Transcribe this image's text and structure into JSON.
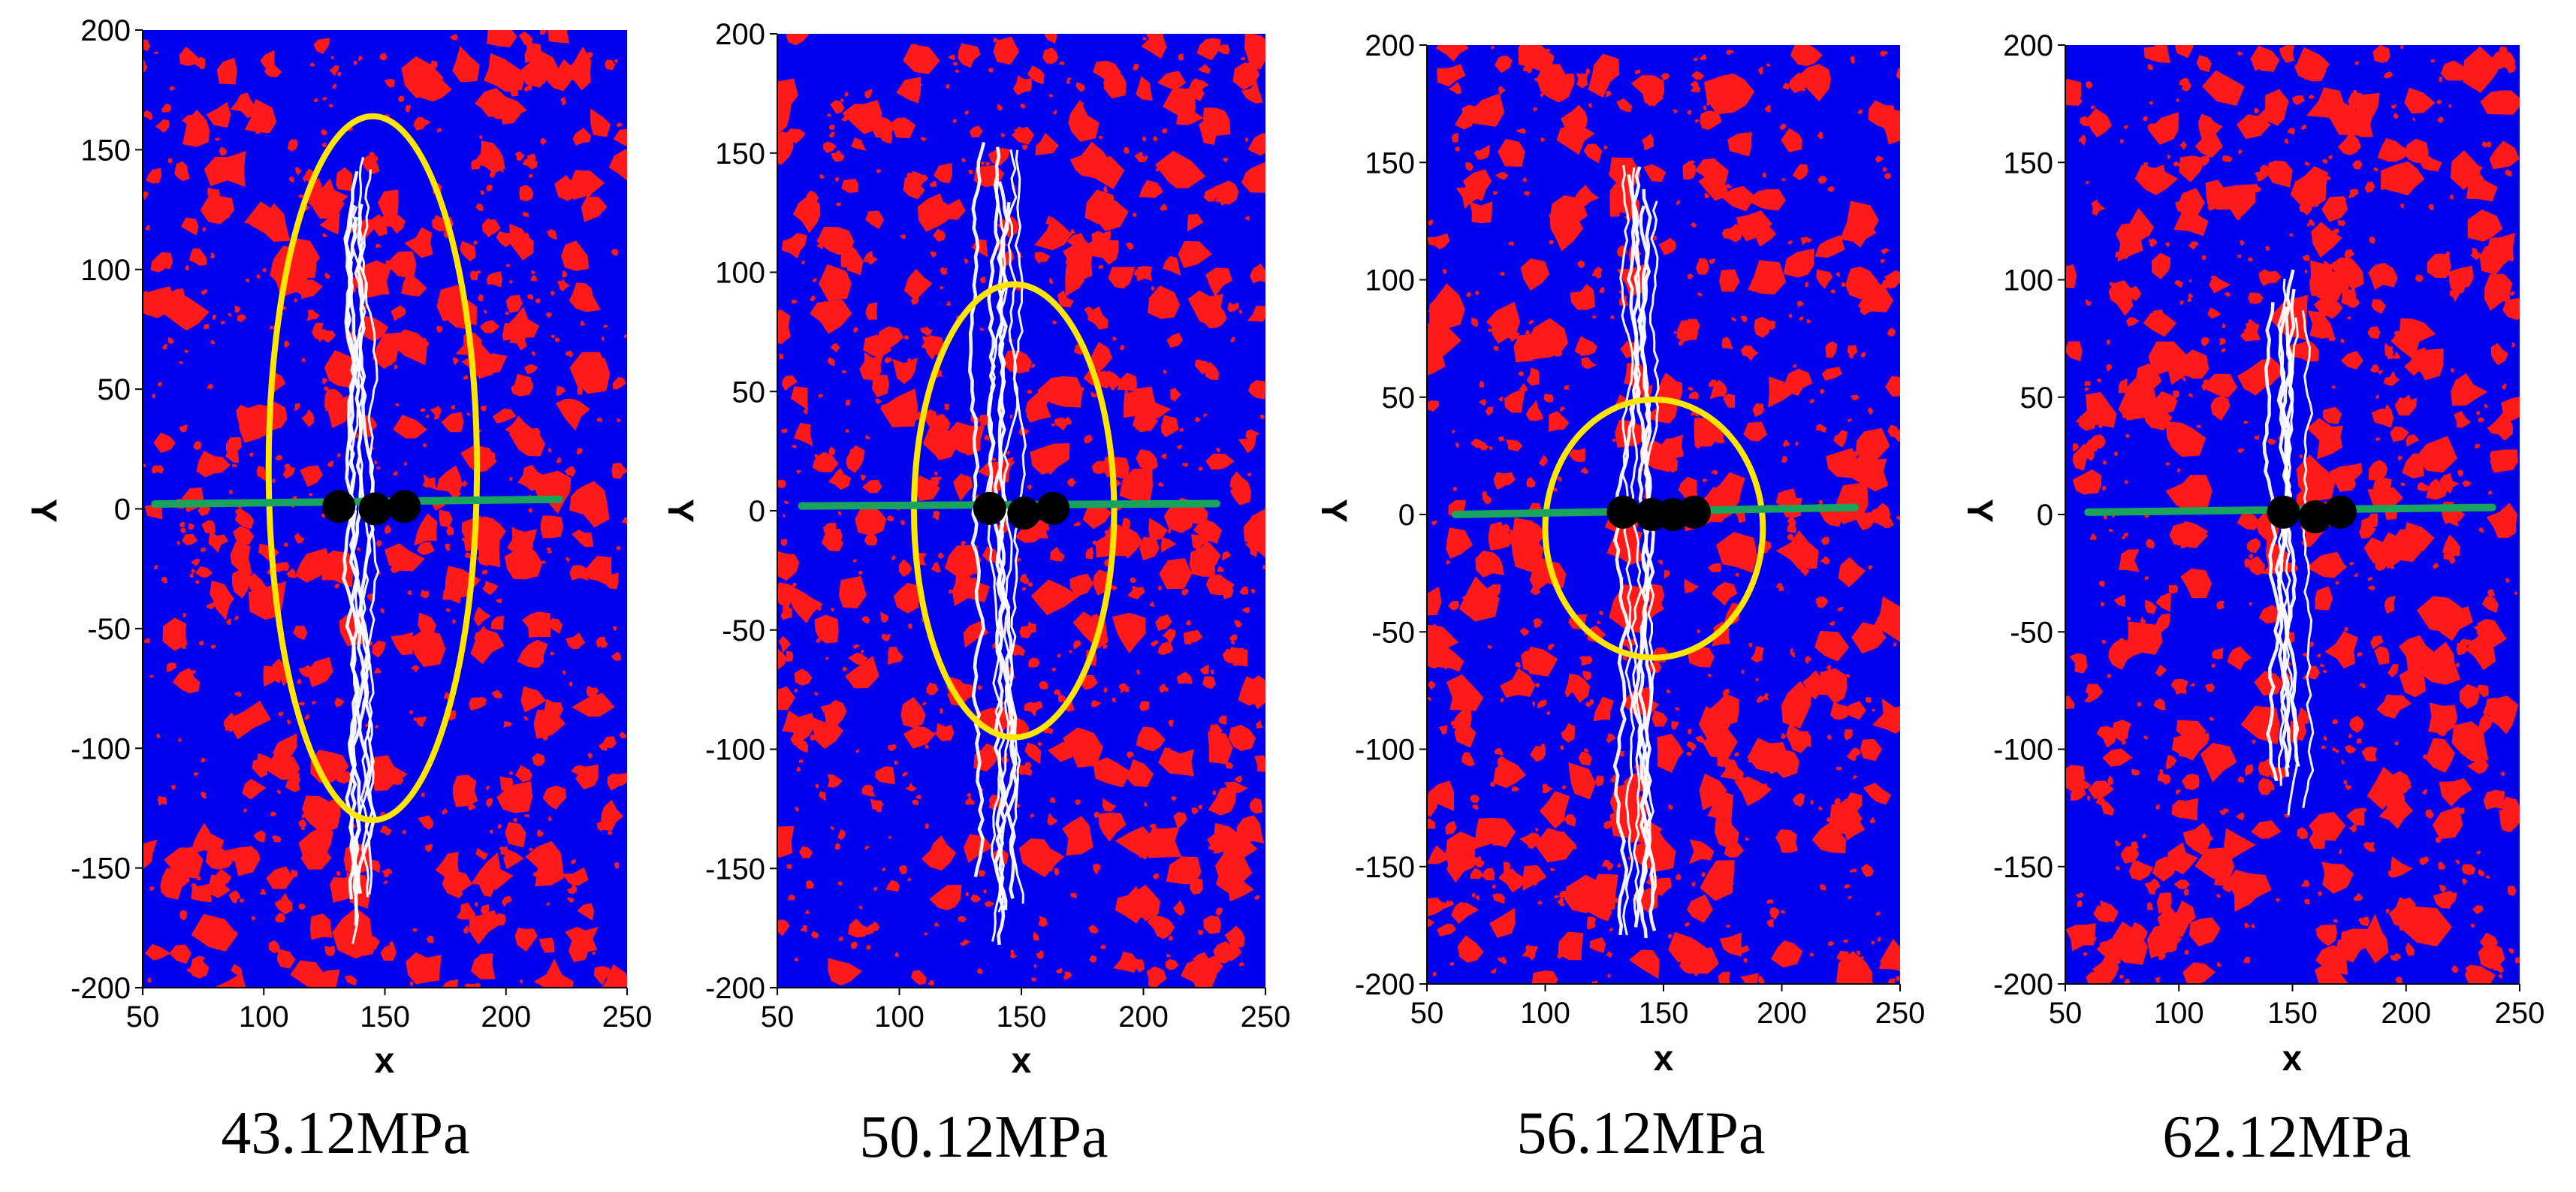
{
  "colors": {
    "matrix": "#0000ee",
    "grains": "#ff1a1a",
    "cracks": "#ffffff",
    "ellipse": "#ffe600",
    "centerline": "#1aa35a",
    "markers": "#000000"
  },
  "chart_data": [
    {
      "type": "scatter",
      "caption": "43.12MPa",
      "xlabel": "x",
      "ylabel": "Y",
      "xlim": [
        50,
        250
      ],
      "ylim": [
        -200,
        200
      ],
      "x_ticks": [
        "50",
        "100",
        "150",
        "200",
        "250"
      ],
      "y_ticks": [
        "200",
        "150",
        "100",
        "50",
        "0",
        "-50",
        "-100",
        "-150",
        "-200"
      ],
      "ellipse": {
        "cx": 145,
        "cy": 17,
        "rx": 43,
        "ry": 147
      },
      "centerline": {
        "x1": 55,
        "y1": 2,
        "x2": 222,
        "y2": 4
      },
      "markers": [
        {
          "x": 131,
          "y": 1
        },
        {
          "x": 146,
          "y": 0
        },
        {
          "x": 158,
          "y": 1
        }
      ],
      "crack_top": 150,
      "crack_bottom": -187
    },
    {
      "type": "scatter",
      "caption": "50.12MPa",
      "xlabel": "x",
      "ylabel": "Y",
      "xlim": [
        50,
        250
      ],
      "ylim": [
        -200,
        200
      ],
      "x_ticks": [
        "50",
        "100",
        "150",
        "200",
        "250"
      ],
      "y_ticks": [
        "200",
        "150",
        "100",
        "50",
        "0",
        "-50",
        "-100",
        "-150",
        "-200"
      ],
      "ellipse": {
        "cx": 147,
        "cy": 0,
        "rx": 41,
        "ry": 95
      },
      "centerline": {
        "x1": 60,
        "y1": 2,
        "x2": 230,
        "y2": 3
      },
      "markers": [
        {
          "x": 137,
          "y": 1
        },
        {
          "x": 151,
          "y": -1
        },
        {
          "x": 163,
          "y": 1
        }
      ],
      "crack_top": 155,
      "crack_bottom": -185
    },
    {
      "type": "scatter",
      "caption": "56.12MPa",
      "xlabel": "x",
      "ylabel": "Y",
      "xlim": [
        50,
        250
      ],
      "ylim": [
        -200,
        200
      ],
      "x_ticks": [
        "50",
        "100",
        "150",
        "200",
        "250"
      ],
      "y_ticks": [
        "200",
        "150",
        "100",
        "50",
        "0",
        "-50",
        "-100",
        "-150",
        "-200"
      ],
      "ellipse": {
        "cx": 146,
        "cy": -6,
        "rx": 46,
        "ry": 55
      },
      "centerline": {
        "x1": 62,
        "y1": 0,
        "x2": 231,
        "y2": 3
      },
      "markers": [
        {
          "x": 133,
          "y": 1
        },
        {
          "x": 145,
          "y": 0
        },
        {
          "x": 154,
          "y": 0
        },
        {
          "x": 163,
          "y": 1
        }
      ],
      "crack_top": 150,
      "crack_bottom": -190
    },
    {
      "type": "scatter",
      "caption": "62.12MPa",
      "xlabel": "x",
      "ylabel": "Y",
      "xlim": [
        50,
        250
      ],
      "ylim": [
        -200,
        200
      ],
      "x_ticks": [
        "50",
        "100",
        "150",
        "200",
        "250"
      ],
      "y_ticks": [
        "200",
        "150",
        "100",
        "50",
        "0",
        "-50",
        "-100",
        "-150",
        "-200"
      ],
      "ellipse": null,
      "centerline": {
        "x1": 60,
        "y1": 1,
        "x2": 238,
        "y2": 3
      },
      "markers": [
        {
          "x": 146,
          "y": 1
        },
        {
          "x": 160,
          "y": -1
        },
        {
          "x": 171,
          "y": 1
        }
      ],
      "crack_top": 110,
      "crack_bottom": -130
    }
  ]
}
